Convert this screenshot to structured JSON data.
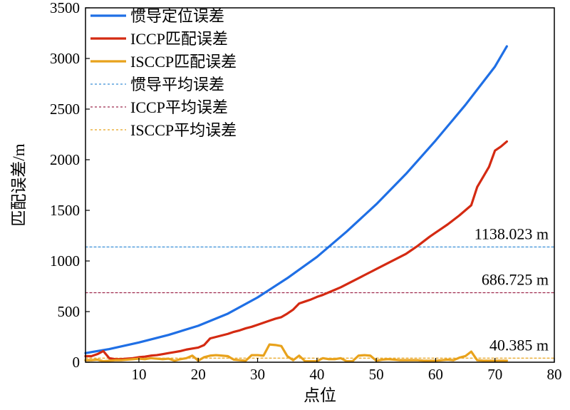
{
  "chart_data": {
    "type": "line",
    "xlabel": "点位",
    "ylabel": "匹配误差/m",
    "xlim": [
      1,
      80
    ],
    "ylim": [
      0,
      3500
    ],
    "xticks": [
      10,
      20,
      30,
      40,
      50,
      60,
      70,
      80
    ],
    "yticks": [
      0,
      500,
      1000,
      1500,
      2000,
      2500,
      3000,
      3500
    ],
    "grid": false,
    "legend_position": "top-left",
    "series": [
      {
        "name": "惯导定位误差",
        "color": "#1f6fe5",
        "style": "solid",
        "x": [
          1,
          5,
          10,
          15,
          20,
          25,
          30,
          35,
          40,
          45,
          50,
          55,
          60,
          65,
          70,
          72
        ],
        "values": [
          90,
          130,
          195,
          270,
          360,
          480,
          640,
          830,
          1040,
          1290,
          1560,
          1860,
          2190,
          2540,
          2920,
          3120
        ]
      },
      {
        "name": "ICCP匹配误差",
        "color": "#d42a12",
        "style": "solid",
        "x": [
          1,
          2,
          3,
          4,
          5,
          6,
          7,
          8,
          9,
          10,
          11,
          12,
          13,
          14,
          15,
          16,
          17,
          18,
          19,
          20,
          21,
          22,
          23,
          24,
          25,
          26,
          27,
          28,
          29,
          30,
          31,
          32,
          33,
          34,
          35,
          36,
          37,
          38,
          39,
          40,
          41,
          42,
          43,
          44,
          45,
          46,
          47,
          48,
          49,
          50,
          51,
          52,
          53,
          54,
          55,
          56,
          57,
          58,
          59,
          60,
          61,
          62,
          63,
          64,
          65,
          66,
          67,
          68,
          69,
          70,
          71,
          72
        ],
        "values": [
          60,
          60,
          80,
          110,
          40,
          30,
          30,
          35,
          40,
          50,
          55,
          65,
          70,
          80,
          90,
          100,
          110,
          125,
          135,
          145,
          170,
          235,
          250,
          265,
          280,
          300,
          315,
          335,
          350,
          370,
          390,
          410,
          430,
          445,
          480,
          520,
          580,
          600,
          620,
          645,
          665,
          690,
          715,
          740,
          770,
          800,
          830,
          860,
          890,
          920,
          950,
          980,
          1010,
          1040,
          1070,
          1110,
          1150,
          1195,
          1240,
          1280,
          1320,
          1360,
          1405,
          1450,
          1500,
          1550,
          1730,
          1830,
          1930,
          2090,
          2130,
          2180
        ]
      },
      {
        "name": "ISCCP匹配误差",
        "color": "#e8a21c",
        "style": "solid",
        "x": [
          1,
          2,
          3,
          4,
          5,
          6,
          7,
          8,
          9,
          10,
          11,
          12,
          13,
          14,
          15,
          16,
          17,
          18,
          19,
          20,
          21,
          22,
          23,
          24,
          25,
          26,
          27,
          28,
          29,
          30,
          31,
          32,
          33,
          34,
          35,
          36,
          37,
          38,
          39,
          40,
          41,
          42,
          43,
          44,
          45,
          46,
          47,
          48,
          49,
          50,
          51,
          52,
          53,
          54,
          55,
          56,
          57,
          58,
          59,
          60,
          61,
          62,
          63,
          64,
          65,
          66,
          67,
          68,
          69,
          70,
          71,
          72
        ],
        "values": [
          20,
          20,
          25,
          10,
          15,
          20,
          20,
          25,
          30,
          35,
          30,
          40,
          35,
          30,
          35,
          15,
          30,
          40,
          65,
          15,
          50,
          65,
          70,
          65,
          60,
          25,
          20,
          15,
          70,
          70,
          65,
          175,
          170,
          160,
          60,
          20,
          65,
          10,
          10,
          10,
          40,
          30,
          30,
          40,
          10,
          10,
          65,
          70,
          65,
          15,
          25,
          30,
          25,
          20,
          20,
          20,
          20,
          15,
          15,
          15,
          20,
          25,
          20,
          45,
          60,
          105,
          20,
          15,
          15,
          15,
          15,
          15
        ]
      },
      {
        "name": "惯导平均误差",
        "color": "#3a8fd8",
        "style": "dashed",
        "x": [
          1,
          80
        ],
        "values": [
          1138.023,
          1138.023
        ]
      },
      {
        "name": "ICCP平均误差",
        "color": "#9e2a4e",
        "style": "dashed",
        "x": [
          1,
          80
        ],
        "values": [
          686.725,
          686.725
        ]
      },
      {
        "name": "ISCCP平均误差",
        "color": "#e8a21c",
        "style": "dashed",
        "x": [
          1,
          80
        ],
        "values": [
          40.385,
          40.385
        ]
      }
    ],
    "annotations": [
      {
        "text": "1138.023 m",
        "y": 1138.023
      },
      {
        "text": "686.725 m",
        "y": 686.725
      },
      {
        "text": "40.385 m",
        "y": 40.385
      }
    ]
  }
}
